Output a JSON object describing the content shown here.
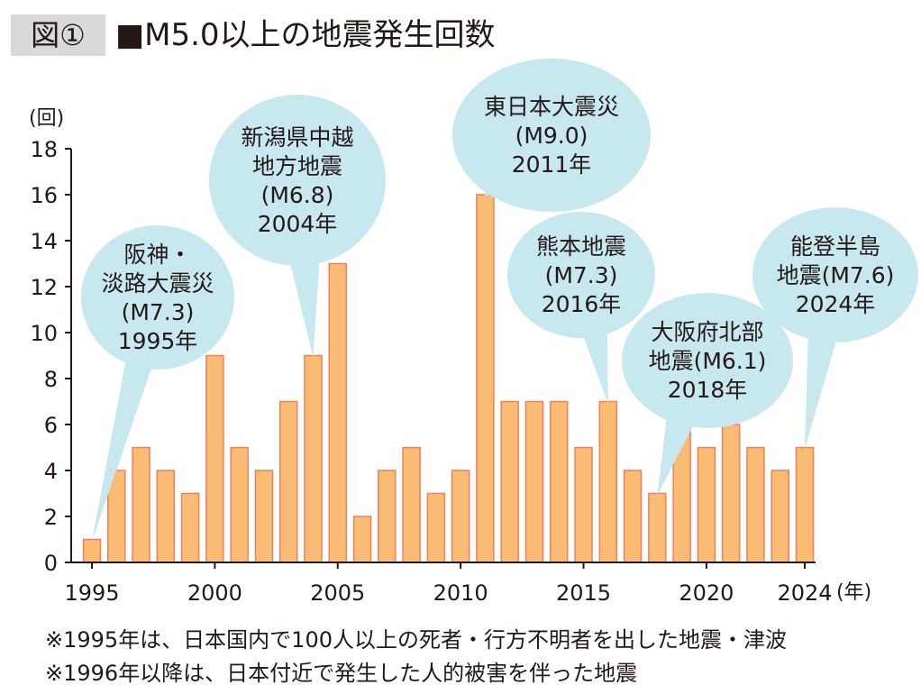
{
  "figure_label": "図①",
  "title": "■M5.0以上の地震発生回数",
  "notes": [
    "※1995年は、日本国内で100人以上の死者・行方不明者を出した地震・津波",
    "※1996年以降は、日本付近で発生した人的被害を伴った地震"
  ],
  "chart_data": {
    "type": "bar",
    "title": "■M5.0以上の地震発生回数",
    "ylabel": "(回)",
    "xlabel": "(年)",
    "ylim": [
      0,
      18
    ],
    "yticks": [
      0,
      2,
      4,
      6,
      8,
      10,
      12,
      14,
      16,
      18
    ],
    "xtick_labels": [
      "1995",
      "2000",
      "2005",
      "2010",
      "2015",
      "2020",
      "2024"
    ],
    "categories": [
      1995,
      1996,
      1997,
      1998,
      1999,
      2000,
      2001,
      2002,
      2003,
      2004,
      2005,
      2006,
      2007,
      2008,
      2009,
      2010,
      2011,
      2012,
      2013,
      2014,
      2015,
      2016,
      2017,
      2018,
      2019,
      2020,
      2021,
      2022,
      2023,
      2024
    ],
    "values": [
      1,
      4,
      5,
      4,
      3,
      9,
      5,
      4,
      7,
      9,
      13,
      2,
      4,
      5,
      3,
      4,
      16,
      7,
      7,
      7,
      5,
      7,
      4,
      3,
      6,
      5,
      6,
      5,
      4,
      5
    ],
    "bar_color": "#fabb75",
    "bar_edge": "#f0805a",
    "callout_color": "#c8e8ef",
    "annotations": [
      {
        "year": 1995,
        "lines": [
          "阪神・",
          "淡路大震災",
          "(M7.3)",
          "1995年"
        ]
      },
      {
        "year": 2004,
        "lines": [
          "新潟県中越",
          "地方地震",
          "(M6.8)",
          "2004年"
        ]
      },
      {
        "year": 2011,
        "lines": [
          "東日本大震災",
          "(M9.0)",
          "2011年"
        ]
      },
      {
        "year": 2016,
        "lines": [
          "熊本地震",
          "(M7.3)",
          "2016年"
        ]
      },
      {
        "year": 2018,
        "lines": [
          "大阪府北部",
          "地震(M6.1)",
          "2018年"
        ]
      },
      {
        "year": 2024,
        "lines": [
          "能登半島",
          "地震(M7.6)",
          "2024年"
        ]
      }
    ]
  }
}
